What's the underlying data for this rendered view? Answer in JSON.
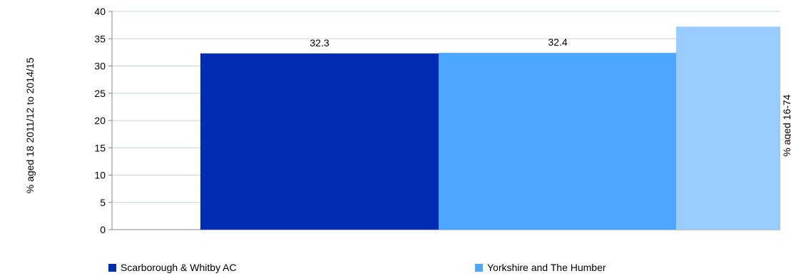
{
  "chart_data": {
    "type": "bar",
    "categories": [
      "Scarborough & Whitby AC",
      "Yorkshire and The Humber",
      ""
    ],
    "values": [
      32.3,
      32.4,
      37.2
    ],
    "data_labels": [
      "32.3",
      "32.4",
      ""
    ],
    "colors": [
      "#002db3",
      "#4da6ff",
      "#99ccff"
    ],
    "ylabel": "% aged 18 2011/12 to 2014/15",
    "y2label": "% aged 16-74",
    "ylim": [
      0,
      40
    ],
    "yticks": [
      0,
      5,
      10,
      15,
      20,
      25,
      30,
      35,
      40
    ],
    "grid": true,
    "legend_placement": "bottom"
  }
}
